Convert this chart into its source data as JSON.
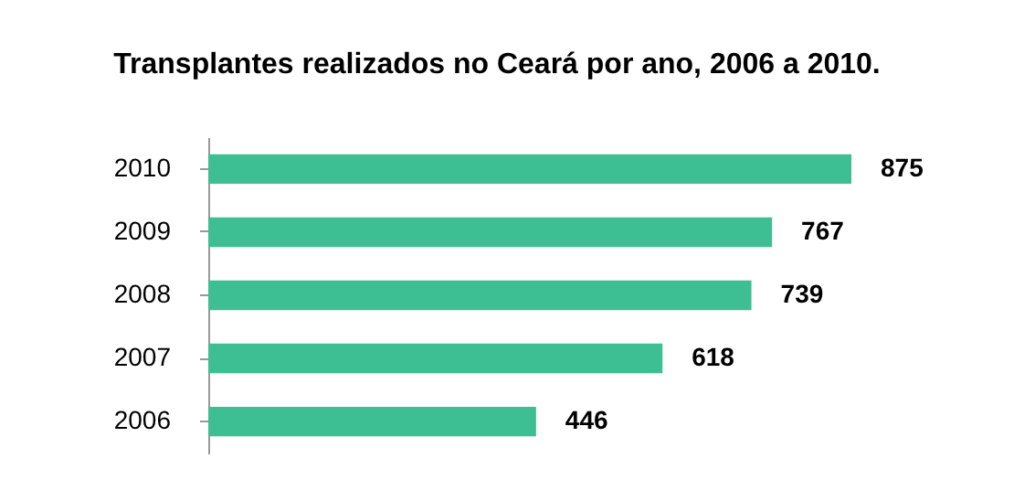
{
  "chart_data": {
    "type": "bar",
    "title": "Transplantes realizados no Ceará por ano, 2006 a 2010.",
    "orientation": "horizontal",
    "categories": [
      "2010",
      "2009",
      "2008",
      "2007",
      "2006"
    ],
    "values": [
      875,
      767,
      739,
      618,
      446
    ],
    "color": "#3dbf93",
    "data_labels": true
  }
}
